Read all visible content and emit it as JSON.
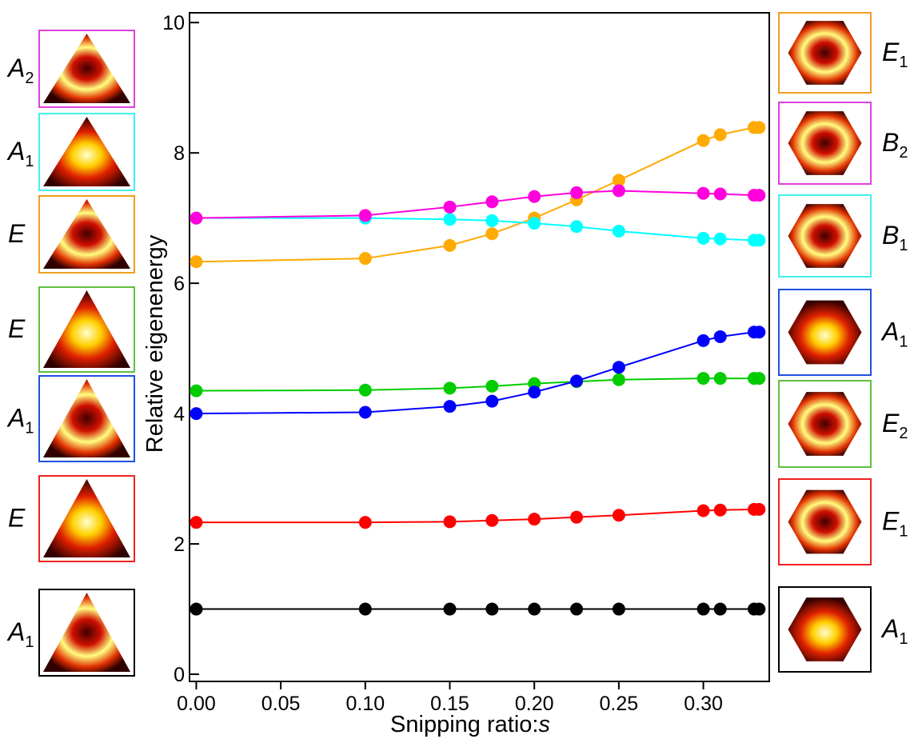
{
  "chart_data": {
    "type": "line",
    "xlabel": {
      "text": "Snipping ratio:",
      "var": "s"
    },
    "ylabel": "Relative eigenenergy",
    "x": [
      0,
      0.1,
      0.15,
      0.175,
      0.2,
      0.225,
      0.25,
      0.3,
      0.31,
      0.33,
      0.333
    ],
    "series": [
      {
        "color": "#000000",
        "values": [
          1,
          1,
          1,
          1,
          1,
          1,
          1,
          1,
          1,
          1,
          1
        ]
      },
      {
        "color": "#ff0000",
        "values": [
          2.33,
          2.33,
          2.34,
          2.36,
          2.38,
          2.41,
          2.44,
          2.51,
          2.52,
          2.53,
          2.53
        ]
      },
      {
        "color": "#00cc00",
        "values": [
          4.35,
          4.36,
          4.39,
          4.42,
          4.46,
          4.49,
          4.52,
          4.54,
          4.54,
          4.54,
          4.54
        ]
      },
      {
        "color": "#0000ff",
        "values": [
          4.0,
          4.02,
          4.11,
          4.19,
          4.33,
          4.5,
          4.71,
          5.12,
          5.18,
          5.25,
          5.25
        ]
      },
      {
        "color": "#ffaa00",
        "values": [
          6.33,
          6.38,
          6.58,
          6.76,
          7.0,
          7.28,
          7.58,
          8.19,
          8.28,
          8.39,
          8.39
        ]
      },
      {
        "color": "#00ffff",
        "values": [
          7.0,
          7.0,
          6.98,
          6.96,
          6.92,
          6.87,
          6.8,
          6.69,
          6.68,
          6.66,
          6.66
        ]
      },
      {
        "color": "#ff00dd",
        "values": [
          7.0,
          7.04,
          7.17,
          7.25,
          7.33,
          7.39,
          7.42,
          7.38,
          7.37,
          7.35,
          7.35
        ]
      }
    ],
    "xlim": [
      -0.004,
      0.339
    ],
    "ylim": [
      -0.11,
      10.15
    ],
    "xticks": [
      {
        "value": 0,
        "label": "0.00"
      },
      0.05,
      {
        "value": 0.1,
        "label": "0.10"
      },
      0.15,
      {
        "value": 0.2,
        "label": "0.20"
      },
      0.25,
      {
        "value": 0.3,
        "label": "0.30"
      }
    ],
    "yticks": [
      0,
      2,
      4,
      6,
      8,
      10
    ]
  },
  "mode_panels": {
    "left": [
      {
        "main": "A",
        "sub": "2",
        "color": "#e040e0"
      },
      {
        "main": "A",
        "sub": "1",
        "color": "#40f0f0"
      },
      {
        "main": "E",
        "color": "#f0a020"
      },
      {
        "main": "E",
        "color": "#60c040"
      },
      {
        "main": "A",
        "sub": "1",
        "color": "#2050e0"
      },
      {
        "main": "E",
        "color": "#f02020"
      },
      {
        "main": "A",
        "sub": "1",
        "color": "#000000"
      }
    ],
    "right": [
      {
        "main": "E",
        "sub": "1",
        "color": "#f0a020"
      },
      {
        "main": "B",
        "sub": "2",
        "color": "#e040e0"
      },
      {
        "main": "B",
        "sub": "1",
        "color": "#40f0f0"
      },
      {
        "main": "A",
        "sub": "1",
        "color": "#2050e0"
      },
      {
        "main": "E",
        "sub": "2",
        "color": "#60c040"
      },
      {
        "main": "E",
        "sub": "1",
        "color": "#f02020"
      },
      {
        "main": "A",
        "sub": "1",
        "color": "#000000"
      }
    ]
  }
}
